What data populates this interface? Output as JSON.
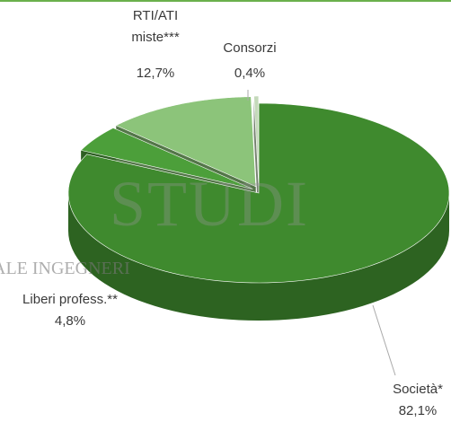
{
  "chart_data": {
    "type": "pie3d",
    "categories": [
      "Società*",
      "Liberi profess.**",
      "RTI/ATI miste***",
      "Consorzi"
    ],
    "values": [
      82.1,
      4.8,
      12.7,
      0.4
    ],
    "value_labels": [
      "82,1%",
      "4,8%",
      "12,7%",
      "0,4%"
    ],
    "colors": [
      "#3f8a2e",
      "#4c9f3a",
      "#8cc47a",
      "#c4d9ba"
    ],
    "watermark": [
      "STUDI",
      "ALE INGEGNERI"
    ]
  }
}
